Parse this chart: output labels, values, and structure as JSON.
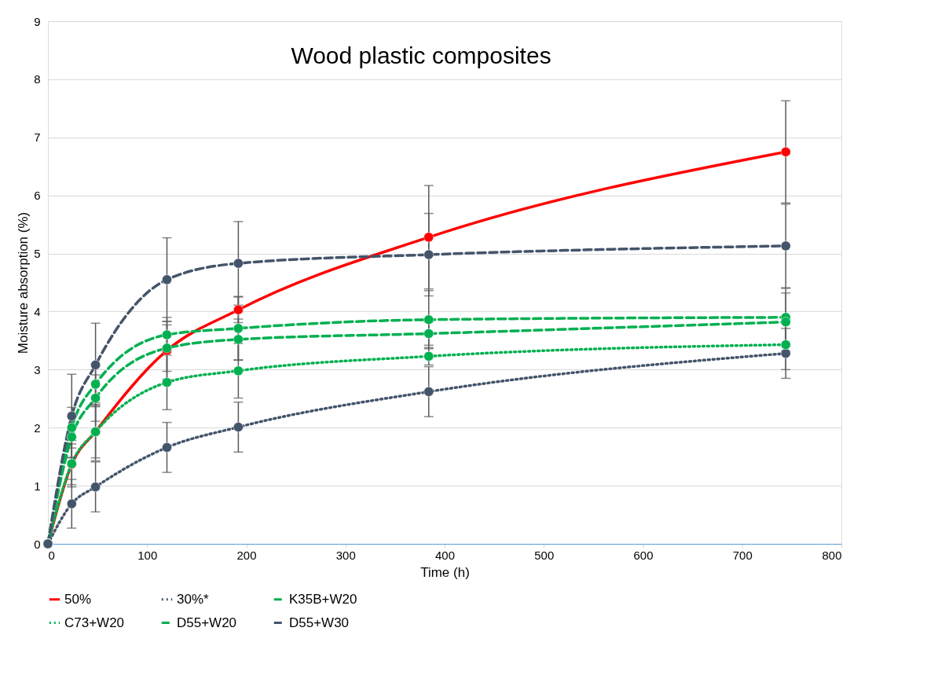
{
  "chart_data": {
    "type": "line",
    "title": "Wood plastic composites",
    "xlabel": "Time (h)",
    "ylabel": "Moisture absorption (%)",
    "x": [
      0,
      24,
      48,
      120,
      192,
      384,
      744
    ],
    "xlim": [
      0,
      800
    ],
    "xticks": [
      0,
      100,
      200,
      300,
      400,
      500,
      600,
      700,
      800
    ],
    "ylim": [
      0,
      9
    ],
    "yticks": [
      0,
      1,
      2,
      3,
      4,
      5,
      6,
      7,
      8,
      9
    ],
    "grid": "y",
    "legend": "bottom",
    "marker": "circle",
    "series": [
      {
        "name": "50%",
        "color": "#ff0000",
        "line_style": "solid",
        "values": [
          0,
          1.37,
          1.93,
          3.33,
          4.03,
          5.28,
          6.75
        ],
        "errors": [
          null,
          0.35,
          0.5,
          0.5,
          0.22,
          0.89,
          0.88
        ]
      },
      {
        "name": "30%*",
        "color": "#44546a",
        "line_style": "dotted",
        "values": [
          0,
          0.69,
          0.98,
          1.66,
          2.01,
          2.62,
          3.28
        ],
        "errors": [
          null,
          0.42,
          0.43,
          0.43,
          0.43,
          0.43,
          0.43
        ]
      },
      {
        "name": "K35B+W20",
        "color": "#00b050",
        "line_style": "dashed",
        "values": [
          0,
          2.0,
          2.75,
          3.6,
          3.71,
          3.86,
          3.9
        ],
        "errors": [
          null,
          0.35,
          0.35,
          0.3,
          0.55,
          0.5,
          0.5
        ]
      },
      {
        "name": "C73+W20",
        "color": "#00b050",
        "line_style": "dotted",
        "values": [
          0,
          1.38,
          1.93,
          2.78,
          2.98,
          3.23,
          3.43
        ],
        "errors": [
          null,
          0.4,
          0.45,
          0.47,
          0.47,
          0.15,
          0.43
        ]
      },
      {
        "name": "D55+W20",
        "color": "#00b050",
        "line_style": "dashed",
        "values": [
          0,
          1.84,
          2.51,
          3.37,
          3.52,
          3.62,
          3.82
        ],
        "errors": [
          null,
          0.35,
          0.4,
          0.4,
          0.35,
          0.2,
          0.5
        ]
      },
      {
        "name": "D55+W30",
        "color": "#44546a",
        "line_style": "dashed",
        "values": [
          0,
          2.2,
          3.08,
          4.55,
          4.83,
          4.98,
          5.13
        ],
        "errors": [
          null,
          0.72,
          0.72,
          0.72,
          0.72,
          0.71,
          0.72
        ]
      }
    ]
  }
}
